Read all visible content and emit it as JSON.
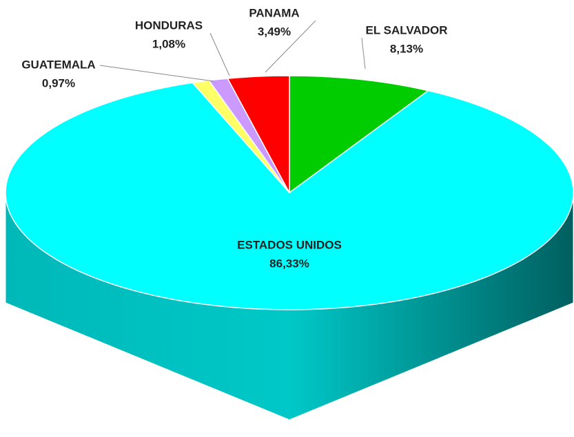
{
  "chart_data": {
    "type": "pie",
    "categories": [
      "EL SALVADOR",
      "ESTADOS UNIDOS",
      "GUATEMALA",
      "HONDURAS",
      "PANAMA"
    ],
    "values": [
      8.13,
      86.33,
      0.97,
      1.08,
      3.49
    ],
    "value_labels": [
      "8,13%",
      "86,33%",
      "0,97%",
      "1,08%",
      "3,49%"
    ],
    "colors": [
      "#00cc00",
      "#00ffff",
      "#ffff66",
      "#cc99ff",
      "#ff0000"
    ]
  }
}
